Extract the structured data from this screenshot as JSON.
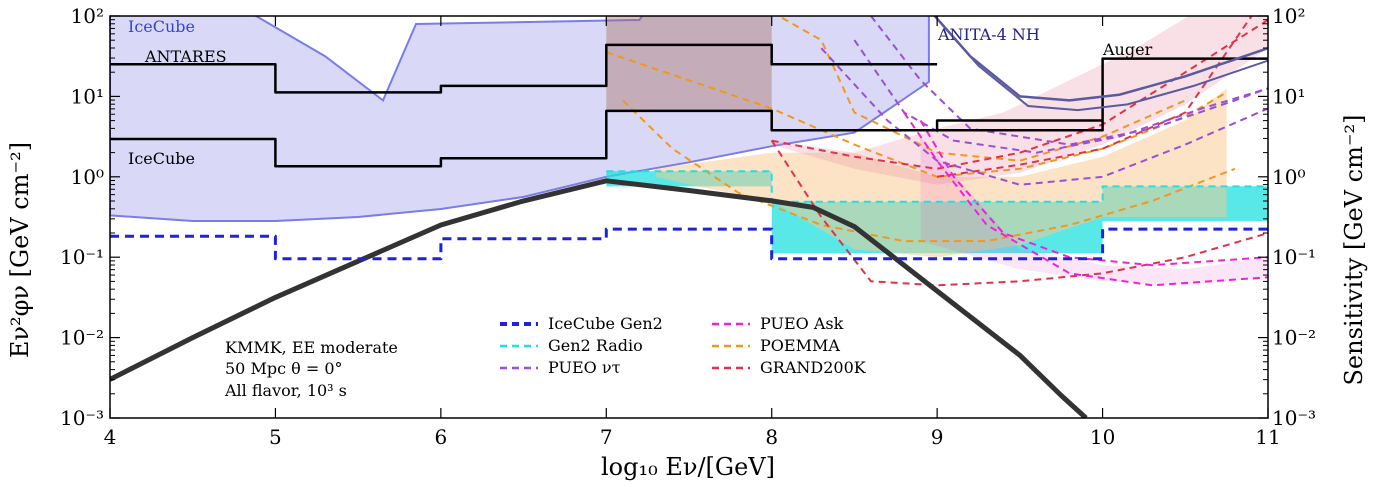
{
  "chart_data": {
    "type": "line",
    "xlabel": "log₁₀  Eν/[GeV]",
    "ylabel": "Eν²φν [GeV cm⁻²]",
    "ylabel_right": "Sensitivity [GeV cm⁻²]",
    "xlim": [
      4,
      11
    ],
    "ylim_log10": [
      -3,
      2
    ],
    "y_scale": "log",
    "grid": false,
    "x_ticks": [
      "4",
      "5",
      "6",
      "7",
      "8",
      "9",
      "10",
      "11"
    ],
    "y_ticks": [
      "10⁻³",
      "10⁻²",
      "10⁻¹",
      "10⁰",
      "10¹",
      "10²"
    ],
    "annotation_box": [
      "KMMK, EE moderate",
      "50 Mpc θ = 0°",
      "All flavor, 10³ s"
    ],
    "region_labels": {
      "icecube_top": "IceCube",
      "antares": "ANTARES",
      "icecube_mid": "IceCube",
      "anita": "ANITA-4 NH",
      "auger": "Auger"
    },
    "legend": [
      {
        "label": "IceCube Gen2",
        "color": "#1f22dc",
        "style": "dashed"
      },
      {
        "label": "Gen2 Radio",
        "color": "#22e0e0",
        "style": "dashed"
      },
      {
        "label": "PUEO ντ",
        "color": "#9a4fd6",
        "style": "dashed"
      },
      {
        "label": "PUEO Ask",
        "color": "#ee22dd",
        "style": "dashed"
      },
      {
        "label": "POEMMA",
        "color": "#f0981e",
        "style": "dashed"
      },
      {
        "label": "GRAND200K",
        "color": "#e0334a",
        "style": "dashed"
      }
    ],
    "series": [
      {
        "name": "KMMK, EE moderate",
        "color": "#333333",
        "x": [
          4,
          4.5,
          5,
          5.5,
          6,
          6.5,
          7,
          7.5,
          8,
          8.25,
          8.5,
          8.75,
          9,
          9.25,
          9.5,
          9.75,
          9.9
        ],
        "y": [
          -2.52,
          -2.0,
          -1.5,
          -1.05,
          -0.6,
          -0.3,
          -0.05,
          -0.17,
          -0.3,
          -0.38,
          -0.62,
          -1.02,
          -1.42,
          -1.82,
          -2.22,
          -2.72,
          -3.0
        ]
      },
      {
        "name": "IceCube Gen2",
        "color": "#1f22dc",
        "x": [
          4,
          5,
          5,
          6,
          6,
          7,
          7,
          8,
          8,
          10,
          10,
          11
        ],
        "y": [
          -0.74,
          -0.74,
          -1.02,
          -1.02,
          -0.77,
          -0.77,
          -0.65,
          -0.65,
          -1.02,
          -1.02,
          -0.65,
          -0.65
        ]
      },
      {
        "name": "ANTARES",
        "color": "#000000",
        "x": [
          4,
          5,
          5,
          6,
          6,
          7,
          7,
          8,
          8,
          9
        ],
        "y": [
          1.4,
          1.4,
          1.05,
          1.05,
          1.13,
          1.13,
          1.64,
          1.64,
          1.4,
          1.4
        ]
      },
      {
        "name": "IceCube",
        "color": "#000000",
        "x": [
          4,
          5,
          5,
          6,
          6,
          7,
          7,
          8,
          8,
          9,
          9,
          10
        ],
        "y": [
          0.47,
          0.47,
          0.13,
          0.13,
          0.23,
          0.23,
          0.82,
          0.82,
          0.58,
          0.58,
          0.7,
          0.7
        ]
      },
      {
        "name": "Auger",
        "color": "#000000",
        "x": [
          8,
          9,
          9,
          10,
          10,
          11
        ],
        "y": [
          0.58,
          0.58,
          0.58,
          0.58,
          1.47,
          1.47
        ]
      },
      {
        "name": "ANITA-4 NH",
        "color": "#5a5aa0",
        "x": [
          8.9,
          9.2,
          9.5,
          9.8,
          10.1,
          10.5,
          11
        ],
        "y": [
          2.2,
          1.5,
          1.0,
          0.95,
          1.02,
          1.25,
          1.6
        ]
      }
    ]
  }
}
